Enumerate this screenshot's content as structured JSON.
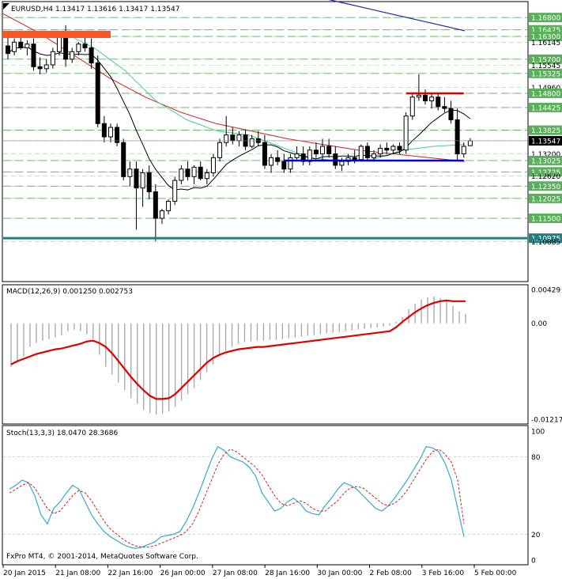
{
  "chart_data": [
    {
      "type": "candlestick",
      "symbol_line": "EURUSD,H4  1.13417 1.13616 1.13417 1.13547",
      "ylim": [
        1.0985,
        1.172
      ],
      "price_labels": [
        "1.16800",
        "1.16475",
        "1.16300",
        "1.16145",
        "1.15700",
        "1.15545",
        "1.15325",
        "1.14960",
        "1.14800",
        "1.14425",
        "1.13825",
        "1.13547",
        "1.13200",
        "1.13025",
        "1.12725",
        "1.12620",
        "1.12350",
        "1.12025",
        "1.11500",
        "1.10975",
        "1.10885"
      ],
      "price_label_values": [
        1.168,
        1.16475,
        1.163,
        1.16145,
        1.157,
        1.15545,
        1.15325,
        1.1496,
        1.148,
        1.14425,
        1.13825,
        1.13547,
        1.132,
        1.13025,
        1.12725,
        1.1262,
        1.1235,
        1.12025,
        1.115,
        1.10975,
        1.10885
      ],
      "level_lines": [
        1.168,
        1.16475,
        1.163,
        1.157,
        1.15325,
        1.148,
        1.14425,
        1.13825,
        1.13025,
        1.12725,
        1.1235,
        1.12025,
        1.115
      ],
      "resistance_zone": [
        1.1626,
        1.1645
      ],
      "support_level": 1.10975,
      "red_segment": 1.148,
      "blue_segment": 1.13025,
      "current_price": 1.13547,
      "ohlc": [
        [
          1.1605,
          1.163,
          1.157,
          1.1585
        ],
        [
          1.159,
          1.1625,
          1.158,
          1.1615
        ],
        [
          1.1615,
          1.163,
          1.1595,
          1.16
        ],
        [
          1.16,
          1.162,
          1.158,
          1.161
        ],
        [
          1.161,
          1.1625,
          1.154,
          1.155
        ],
        [
          1.155,
          1.1575,
          1.153,
          1.1545
        ],
        [
          1.1545,
          1.157,
          1.1535,
          1.1555
        ],
        [
          1.1555,
          1.16,
          1.1545,
          1.159
        ],
        [
          1.159,
          1.164,
          1.158,
          1.163
        ],
        [
          1.163,
          1.166,
          1.155,
          1.157
        ],
        [
          1.157,
          1.16,
          1.156,
          1.159
        ],
        [
          1.159,
          1.1615,
          1.158,
          1.161
        ],
        [
          1.161,
          1.1645,
          1.159,
          1.16
        ],
        [
          1.16,
          1.1625,
          1.1545,
          1.156
        ],
        [
          1.156,
          1.158,
          1.139,
          1.14
        ],
        [
          1.14,
          1.142,
          1.135,
          1.1365
        ],
        [
          1.1365,
          1.14,
          1.135,
          1.139
        ],
        [
          1.139,
          1.14,
          1.134,
          1.135
        ],
        [
          1.135,
          1.136,
          1.125,
          1.126
        ],
        [
          1.126,
          1.13,
          1.1235,
          1.128
        ],
        [
          1.128,
          1.13,
          1.112,
          1.123
        ],
        [
          1.123,
          1.128,
          1.118,
          1.127
        ],
        [
          1.127,
          1.129,
          1.12,
          1.122
        ],
        [
          1.122,
          1.124,
          1.109,
          1.115
        ],
        [
          1.115,
          1.1175,
          1.1135,
          1.117
        ],
        [
          1.117,
          1.12,
          1.116,
          1.1195
        ],
        [
          1.1195,
          1.126,
          1.1185,
          1.125
        ],
        [
          1.125,
          1.129,
          1.124,
          1.128
        ],
        [
          1.128,
          1.13,
          1.125,
          1.126
        ],
        [
          1.126,
          1.129,
          1.124,
          1.1285
        ],
        [
          1.1285,
          1.13,
          1.125,
          1.1255
        ],
        [
          1.1255,
          1.128,
          1.124,
          1.127
        ],
        [
          1.127,
          1.132,
          1.126,
          1.131
        ],
        [
          1.131,
          1.136,
          1.13,
          1.135
        ],
        [
          1.135,
          1.142,
          1.134,
          1.137
        ],
        [
          1.137,
          1.139,
          1.1345,
          1.1355
        ],
        [
          1.1355,
          1.138,
          1.134,
          1.137
        ],
        [
          1.137,
          1.1385,
          1.133,
          1.134
        ],
        [
          1.134,
          1.137,
          1.1335,
          1.136
        ],
        [
          1.136,
          1.138,
          1.134,
          1.135
        ],
        [
          1.135,
          1.137,
          1.128,
          1.129
        ],
        [
          1.129,
          1.132,
          1.127,
          1.131
        ],
        [
          1.131,
          1.133,
          1.129,
          1.13
        ],
        [
          1.13,
          1.132,
          1.127,
          1.128
        ],
        [
          1.128,
          1.132,
          1.127,
          1.131
        ],
        [
          1.131,
          1.134,
          1.13,
          1.132
        ],
        [
          1.132,
          1.134,
          1.129,
          1.13
        ],
        [
          1.13,
          1.134,
          1.129,
          1.133
        ],
        [
          1.133,
          1.135,
          1.131,
          1.132
        ],
        [
          1.132,
          1.136,
          1.13,
          1.134
        ],
        [
          1.134,
          1.136,
          1.131,
          1.132
        ],
        [
          1.132,
          1.134,
          1.128,
          1.129
        ],
        [
          1.129,
          1.131,
          1.1275,
          1.13
        ],
        [
          1.13,
          1.132,
          1.129,
          1.131
        ],
        [
          1.131,
          1.133,
          1.1295,
          1.1305
        ],
        [
          1.1305,
          1.1345,
          1.13,
          1.134
        ],
        [
          1.134,
          1.135,
          1.13,
          1.131
        ],
        [
          1.131,
          1.133,
          1.13,
          1.132
        ],
        [
          1.132,
          1.1345,
          1.131,
          1.1335
        ],
        [
          1.1335,
          1.135,
          1.132,
          1.133
        ],
        [
          1.133,
          1.1345,
          1.132,
          1.134
        ],
        [
          1.134,
          1.135,
          1.132,
          1.133
        ],
        [
          1.133,
          1.143,
          1.132,
          1.142
        ],
        [
          1.142,
          1.148,
          1.141,
          1.147
        ],
        [
          1.147,
          1.153,
          1.146,
          1.1475
        ],
        [
          1.1475,
          1.149,
          1.145,
          1.146
        ],
        [
          1.146,
          1.148,
          1.144,
          1.147
        ],
        [
          1.147,
          1.148,
          1.1435,
          1.1445
        ],
        [
          1.1445,
          1.147,
          1.143,
          1.144
        ],
        [
          1.144,
          1.146,
          1.14,
          1.141
        ],
        [
          1.141,
          1.144,
          1.13,
          1.132
        ],
        [
          1.132,
          1.135,
          1.131,
          1.134
        ],
        [
          1.13417,
          1.13616,
          1.13417,
          1.13547
        ]
      ],
      "ma_slow": [
        1.175,
        1.172,
        1.169,
        1.166,
        1.163,
        1.16,
        1.157,
        1.154,
        1.151,
        1.1485,
        1.146,
        1.144,
        1.142,
        1.1405
      ],
      "ma_mid": [
        1.169,
        1.164,
        1.158,
        1.152,
        1.147,
        1.143,
        1.14,
        1.138,
        1.136,
        1.1345,
        1.133,
        1.132,
        1.131,
        1.13
      ],
      "ma_fast": [
        1.164,
        1.16,
        1.154,
        1.146,
        1.141,
        1.138,
        1.137,
        1.134,
        1.131,
        1.13,
        1.1305,
        1.133,
        1.134,
        1.1345
      ],
      "ma_slowest_visible": [
        1.1735,
        1.172,
        1.1705,
        1.169,
        1.1675,
        1.166,
        1.1645
      ],
      "time_labels": [
        "20 Jan 2015",
        "21 Jan 08:00",
        "22 Jan 16:00",
        "26 Jan 00:00",
        "27 Jan 08:00",
        "28 Jan 16:00",
        "30 Jan 00:00",
        "2 Feb 08:00",
        "3 Feb 16:00",
        "5 Feb 00:00"
      ]
    },
    {
      "type": "histogram+line",
      "title": "MACD(12,26,9) 0.001250 0.002753",
      "ylim": [
        -0.01217,
        0.00429
      ],
      "tick_labels": [
        "0.00429",
        "0.00",
        "-0.012179"
      ],
      "tick_values": [
        0.00429,
        0.0,
        -0.01217
      ],
      "histogram": [
        -0.0055,
        -0.005,
        -0.0042,
        -0.003,
        -0.0025,
        -0.0022,
        -0.002,
        -0.0018,
        -0.0015,
        -0.001,
        -0.0008,
        -0.001,
        -0.0014,
        -0.002,
        -0.004,
        -0.0055,
        -0.0065,
        -0.0075,
        -0.0085,
        -0.0095,
        -0.0102,
        -0.011,
        -0.0114,
        -0.0116,
        -0.0115,
        -0.0112,
        -0.0106,
        -0.0098,
        -0.009,
        -0.0082,
        -0.0072,
        -0.0062,
        -0.0052,
        -0.0042,
        -0.0035,
        -0.003,
        -0.0026,
        -0.0024,
        -0.0023,
        -0.0022,
        -0.0022,
        -0.0021,
        -0.0021,
        -0.002,
        -0.0019,
        -0.0018,
        -0.0017,
        -0.0016,
        -0.0015,
        -0.0014,
        -0.0013,
        -0.0012,
        -0.0011,
        -0.001,
        -0.0009,
        -0.0008,
        -0.0007,
        -0.0006,
        -0.0005,
        -0.0004,
        -0.0003,
        0.0002,
        0.0008,
        0.0018,
        0.0025,
        0.003,
        0.0033,
        0.0034,
        0.0032,
        0.0028,
        0.0022,
        0.0015,
        0.0012
      ],
      "signal": [
        -0.0052,
        -0.0048,
        -0.0045,
        -0.0042,
        -0.0039,
        -0.0037,
        -0.0035,
        -0.0033,
        -0.0032,
        -0.003,
        -0.0028,
        -0.0026,
        -0.0023,
        -0.0022,
        -0.0025,
        -0.003,
        -0.0038,
        -0.0048,
        -0.0058,
        -0.0068,
        -0.0077,
        -0.0085,
        -0.0092,
        -0.0096,
        -0.0096,
        -0.0095,
        -0.009,
        -0.0082,
        -0.0074,
        -0.0066,
        -0.0058,
        -0.005,
        -0.0044,
        -0.004,
        -0.0037,
        -0.0035,
        -0.0033,
        -0.0032,
        -0.0031,
        -0.003,
        -0.003,
        -0.0029,
        -0.0028,
        -0.0027,
        -0.0026,
        -0.0025,
        -0.0024,
        -0.0023,
        -0.0022,
        -0.0021,
        -0.002,
        -0.0019,
        -0.0018,
        -0.0017,
        -0.0016,
        -0.0015,
        -0.0014,
        -0.0013,
        -0.0012,
        -0.0011,
        -0.001,
        -0.0005,
        0.0002,
        0.0008,
        0.0014,
        0.0019,
        0.0023,
        0.0026,
        0.0028,
        0.0029,
        0.0028,
        0.0028,
        0.0028
      ]
    },
    {
      "type": "line",
      "title": "Stoch(13,3,3) 18.0470 28.3686",
      "ylim": [
        0,
        100
      ],
      "tick_labels": [
        "100",
        "80",
        "20",
        "0"
      ],
      "tick_values": [
        100,
        80,
        20,
        0
      ],
      "main": [
        55,
        58,
        62,
        60,
        50,
        35,
        28,
        40,
        45,
        52,
        58,
        55,
        45,
        35,
        28,
        22,
        18,
        15,
        12,
        10,
        9,
        10,
        12,
        14,
        18,
        19,
        20,
        22,
        30,
        40,
        52,
        65,
        78,
        88,
        85,
        80,
        78,
        76,
        72,
        65,
        52,
        45,
        38,
        40,
        45,
        48,
        44,
        38,
        36,
        35,
        42,
        48,
        55,
        60,
        58,
        55,
        50,
        45,
        40,
        38,
        42,
        48,
        55,
        62,
        70,
        78,
        88,
        87,
        84,
        75,
        62,
        40,
        18
      ],
      "signal": [
        52,
        55,
        58,
        60,
        56,
        48,
        40,
        36,
        38,
        44,
        50,
        54,
        52,
        46,
        38,
        30,
        24,
        20,
        16,
        13,
        11,
        10,
        10,
        11,
        13,
        15,
        17,
        19,
        22,
        28,
        38,
        50,
        62,
        74,
        82,
        86,
        84,
        80,
        76,
        72,
        66,
        58,
        50,
        44,
        42,
        44,
        46,
        44,
        40,
        38,
        38,
        42,
        46,
        52,
        56,
        57,
        56,
        52,
        48,
        44,
        42,
        44,
        48,
        54,
        62,
        70,
        78,
        84,
        86,
        82,
        76,
        62,
        28
      ]
    }
  ],
  "footer": {
    "copyright": "FxPro MT4, © 2001-2014, MetaQuotes Software Corp."
  },
  "colors": {
    "grid": "#a0d0a0",
    "level": "#5ab05a",
    "ma_slow": "#2222aa",
    "ma_mid": "#cc2222",
    "ma_fast": "#44cc99",
    "ma_black": "#000000",
    "zone": "#ff5522",
    "support": "#208080",
    "red_segment": "#dd0000",
    "blue_segment": "#0000cc",
    "macd_line": "#dd0000",
    "macd_hist": "#aaaaaa",
    "stoch_main": "#33aacc",
    "stoch_signal": "#cc2222"
  }
}
